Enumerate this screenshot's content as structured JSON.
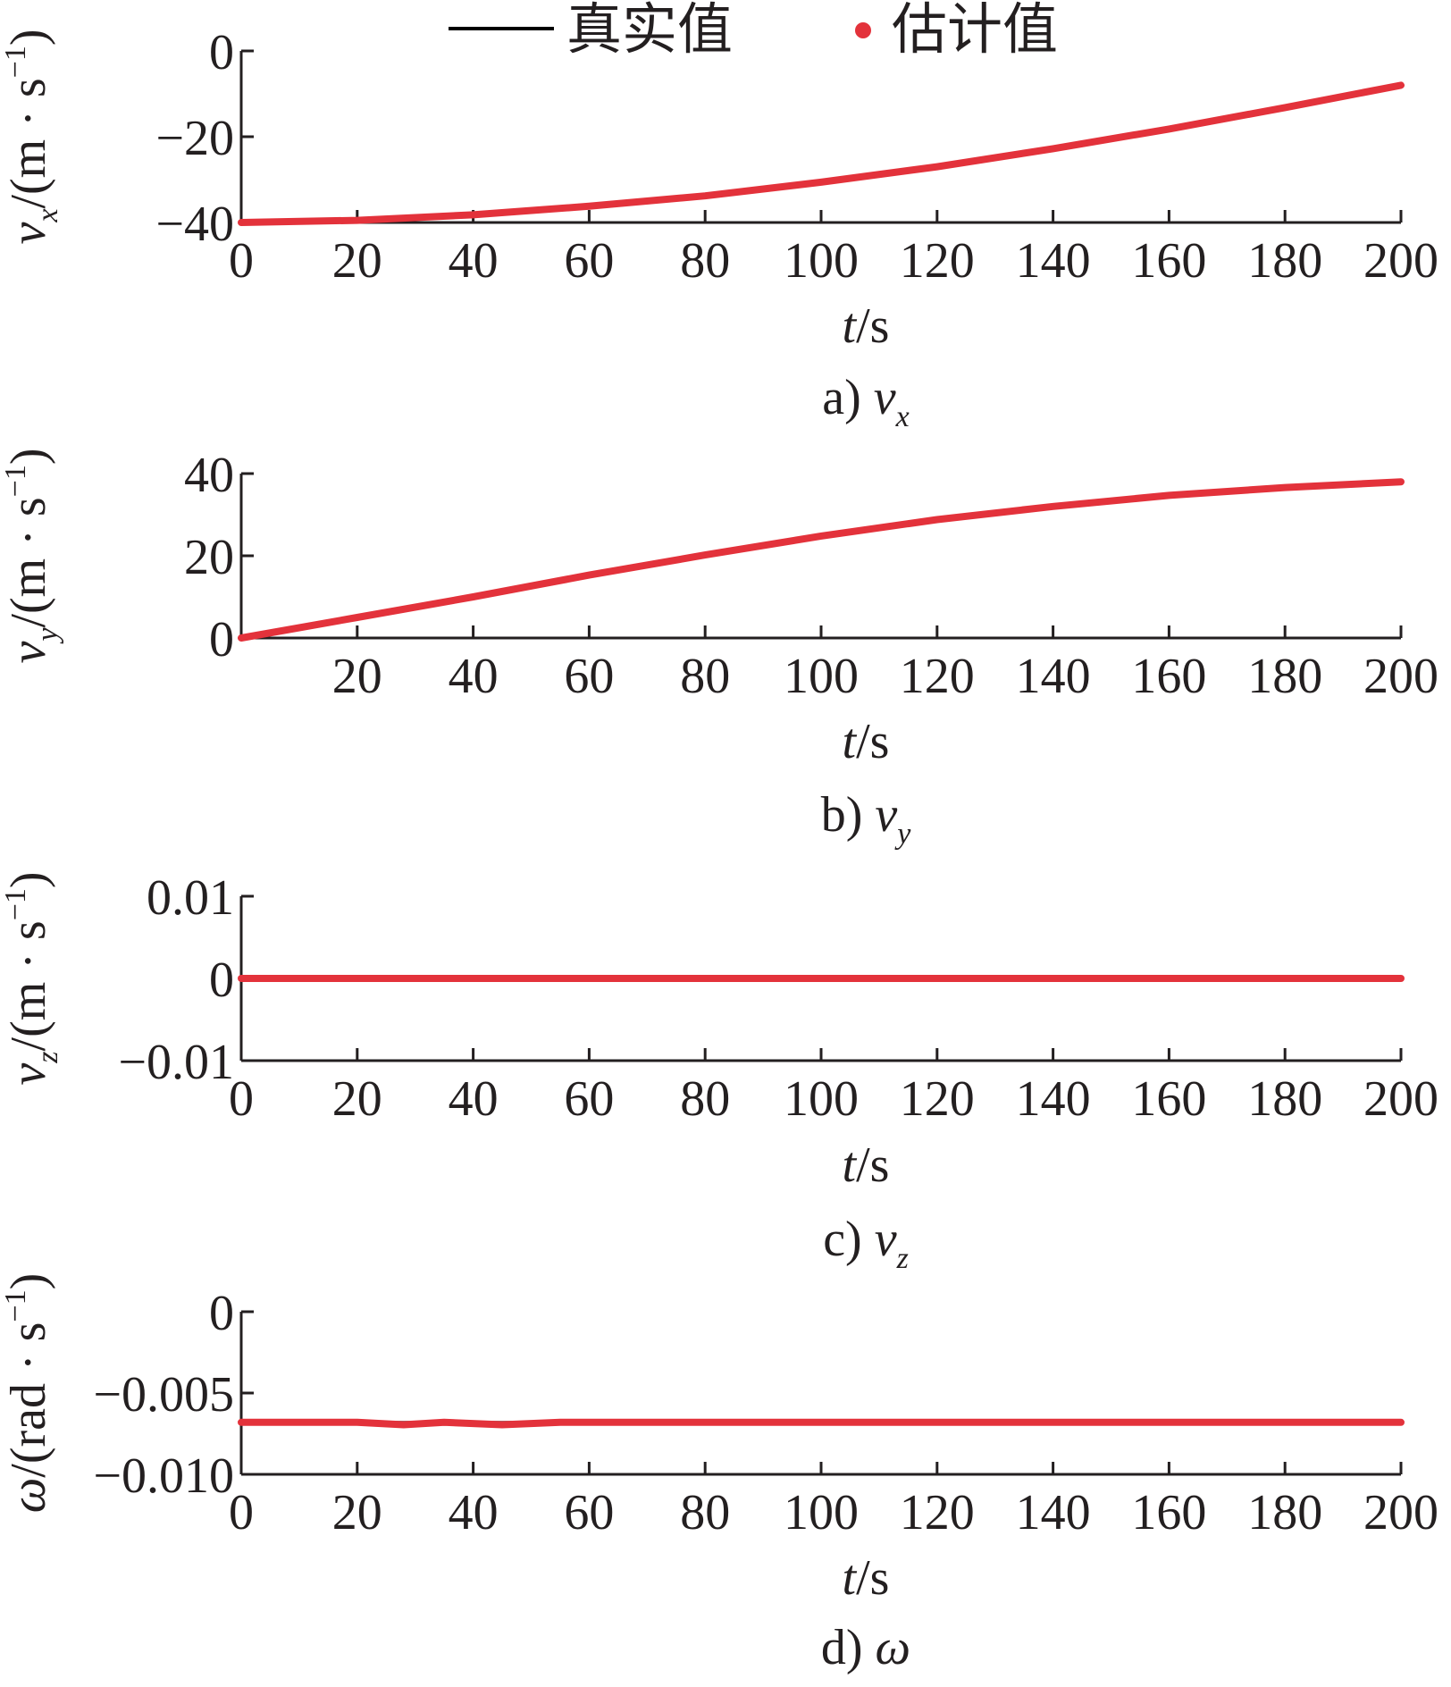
{
  "legend": {
    "true_label": "真实值",
    "estimate_label": "估计值"
  },
  "colors": {
    "true_line": "#000000",
    "estimate": "#e3323b",
    "axis": "#231f20"
  },
  "chart_data": [
    {
      "type": "line",
      "ylabel": {
        "symbol": "v",
        "sub": "x",
        "unit_pre": "/(m · s",
        "unit_sup": "−1",
        "unit_post": ")"
      },
      "xlabel": {
        "symbol": "t",
        "unit": "/s"
      },
      "caption": {
        "prefix": "a) ",
        "symbol": "v",
        "sub": "x"
      },
      "xlim": [
        0,
        200
      ],
      "ylim": [
        -40,
        0
      ],
      "xticks": [
        0,
        20,
        40,
        60,
        80,
        100,
        120,
        140,
        160,
        180,
        200
      ],
      "xtick_labels": [
        "0",
        "20",
        "40",
        "60",
        "80",
        "100",
        "120",
        "140",
        "160",
        "180",
        "200"
      ],
      "yticks": [
        -40,
        -20,
        0
      ],
      "ytick_labels": [
        "−40",
        "−20",
        "0"
      ],
      "series": [
        {
          "name": "真实值",
          "x": [
            0,
            20,
            40,
            60,
            80,
            100,
            120,
            140,
            160,
            180,
            200
          ],
          "values": [
            -40,
            -39.5,
            -38.2,
            -36.2,
            -33.8,
            -30.6,
            -27,
            -22.8,
            -18.2,
            -13.2,
            -8
          ]
        },
        {
          "name": "估计值",
          "x": [
            0,
            20,
            40,
            60,
            80,
            100,
            120,
            140,
            160,
            180,
            200
          ],
          "values": [
            -40,
            -39.5,
            -38.2,
            -36.2,
            -33.8,
            -30.6,
            -27,
            -22.8,
            -18.2,
            -13.2,
            -8
          ]
        }
      ]
    },
    {
      "type": "line",
      "ylabel": {
        "symbol": "v",
        "sub": "y",
        "unit_pre": "/(m · s",
        "unit_sup": "−1",
        "unit_post": ")"
      },
      "xlabel": {
        "symbol": "t",
        "unit": "/s"
      },
      "caption": {
        "prefix": "b) ",
        "symbol": "v",
        "sub": "y"
      },
      "xlim": [
        0,
        200
      ],
      "ylim": [
        0,
        40
      ],
      "xticks": [
        20,
        40,
        60,
        80,
        100,
        120,
        140,
        160,
        180,
        200
      ],
      "xtick_labels": [
        "20",
        "40",
        "60",
        "80",
        "100",
        "120",
        "140",
        "160",
        "180",
        "200"
      ],
      "yticks": [
        0,
        20,
        40
      ],
      "ytick_labels": [
        "0",
        "20",
        "40"
      ],
      "series": [
        {
          "name": "真实值",
          "x": [
            0,
            20,
            40,
            60,
            80,
            100,
            120,
            140,
            160,
            180,
            200
          ],
          "values": [
            0,
            5,
            10,
            15.3,
            20.2,
            24.8,
            28.8,
            32,
            34.7,
            36.6,
            38
          ]
        },
        {
          "name": "估计值",
          "x": [
            0,
            20,
            40,
            60,
            80,
            100,
            120,
            140,
            160,
            180,
            200
          ],
          "values": [
            0,
            5,
            10,
            15.3,
            20.2,
            24.8,
            28.8,
            32,
            34.7,
            36.6,
            38
          ]
        }
      ]
    },
    {
      "type": "line",
      "ylabel": {
        "symbol": "v",
        "sub": "z",
        "unit_pre": "/(m · s",
        "unit_sup": "−1",
        "unit_post": ")"
      },
      "xlabel": {
        "symbol": "t",
        "unit": "/s"
      },
      "caption": {
        "prefix": "c) ",
        "symbol": "v",
        "sub": "z"
      },
      "xlim": [
        0,
        200
      ],
      "ylim": [
        -0.01,
        0.01
      ],
      "xticks": [
        0,
        20,
        40,
        60,
        80,
        100,
        120,
        140,
        160,
        180,
        200
      ],
      "xtick_labels": [
        "0",
        "20",
        "40",
        "60",
        "80",
        "100",
        "120",
        "140",
        "160",
        "180",
        "200"
      ],
      "yticks": [
        -0.01,
        0,
        0.01
      ],
      "ytick_labels": [
        "−0.01",
        "0",
        "0.01"
      ],
      "series": [
        {
          "name": "真实值",
          "x": [
            0,
            200
          ],
          "values": [
            0,
            0
          ]
        },
        {
          "name": "估计值",
          "x": [
            0,
            200
          ],
          "values": [
            0,
            0
          ]
        }
      ]
    },
    {
      "type": "line",
      "ylabel": {
        "symbol": "ω",
        "sub": "",
        "unit_pre": "/(rad · s",
        "unit_sup": "−1",
        "unit_post": ")"
      },
      "xlabel": {
        "symbol": "t",
        "unit": "/s"
      },
      "caption": {
        "prefix": "d) ",
        "symbol": "ω",
        "sub": ""
      },
      "xlim": [
        0,
        200
      ],
      "ylim": [
        -0.01,
        0
      ],
      "xticks": [
        0,
        20,
        40,
        60,
        80,
        100,
        120,
        140,
        160,
        180,
        200
      ],
      "xtick_labels": [
        "0",
        "20",
        "40",
        "60",
        "80",
        "100",
        "120",
        "140",
        "160",
        "180",
        "200"
      ],
      "yticks": [
        -0.01,
        -0.005,
        0
      ],
      "ytick_labels": [
        "−0.010",
        "−0.005",
        "0"
      ],
      "series": [
        {
          "name": "真实值",
          "x": [
            0,
            200
          ],
          "values": [
            -0.0068,
            -0.0068
          ]
        },
        {
          "name": "估计值",
          "x": [
            0,
            10,
            20,
            28,
            35,
            45,
            55,
            70,
            100,
            150,
            200
          ],
          "values": [
            -0.0068,
            -0.0068,
            -0.0068,
            -0.00695,
            -0.0068,
            -0.00695,
            -0.0068,
            -0.0068,
            -0.0068,
            -0.0068,
            -0.0068
          ]
        }
      ]
    }
  ]
}
